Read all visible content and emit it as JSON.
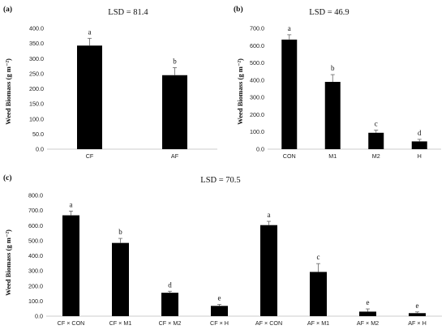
{
  "chart_data": [
    {
      "type": "bar",
      "panel": "(a)",
      "title": "LSD = 81.4",
      "ylabel": "Weed Biomass (g m⁻²)",
      "categories": [
        "CF",
        "AF"
      ],
      "values": [
        343,
        245
      ],
      "errors": [
        24,
        25
      ],
      "letters": [
        "a",
        "b"
      ],
      "ylim": [
        0,
        400
      ],
      "yticks": [
        "0.0",
        "50.0",
        "100.0",
        "150.0",
        "200.0",
        "250.0",
        "300.0",
        "350.0",
        "400.0"
      ]
    },
    {
      "type": "bar",
      "panel": "(b)",
      "title": "LSD = 46.9",
      "ylabel": "Weed Biomass (g m⁻²)",
      "categories": [
        "CON",
        "M1",
        "M2",
        "H"
      ],
      "values": [
        635,
        390,
        95,
        45
      ],
      "errors": [
        28,
        42,
        15,
        12
      ],
      "letters": [
        "a",
        "b",
        "c",
        "d"
      ],
      "ylim": [
        0,
        700
      ],
      "yticks": [
        "0.0",
        "100.0",
        "200.0",
        "300.0",
        "400.0",
        "500.0",
        "600.0",
        "700.0"
      ]
    },
    {
      "type": "bar",
      "panel": "(c)",
      "title": "LSD = 70.5",
      "ylabel": "Weed Biomass (g m⁻²)",
      "categories": [
        "CF × CON",
        "CF × M1",
        "CF × M2",
        "CF × H",
        "AF × CON",
        "AF × M1",
        "AF × M2",
        "AF × H"
      ],
      "values": [
        668,
        485,
        155,
        68,
        603,
        293,
        30,
        20
      ],
      "errors": [
        28,
        30,
        10,
        10,
        25,
        55,
        18,
        8
      ],
      "letters": [
        "a",
        "b",
        "d",
        "e",
        "a",
        "c",
        "e",
        "e"
      ],
      "ylim": [
        0,
        800
      ],
      "yticks": [
        "0.0",
        "100.0",
        "200.0",
        "300.0",
        "400.0",
        "500.0",
        "600.0",
        "700.0",
        "800.0"
      ]
    }
  ]
}
